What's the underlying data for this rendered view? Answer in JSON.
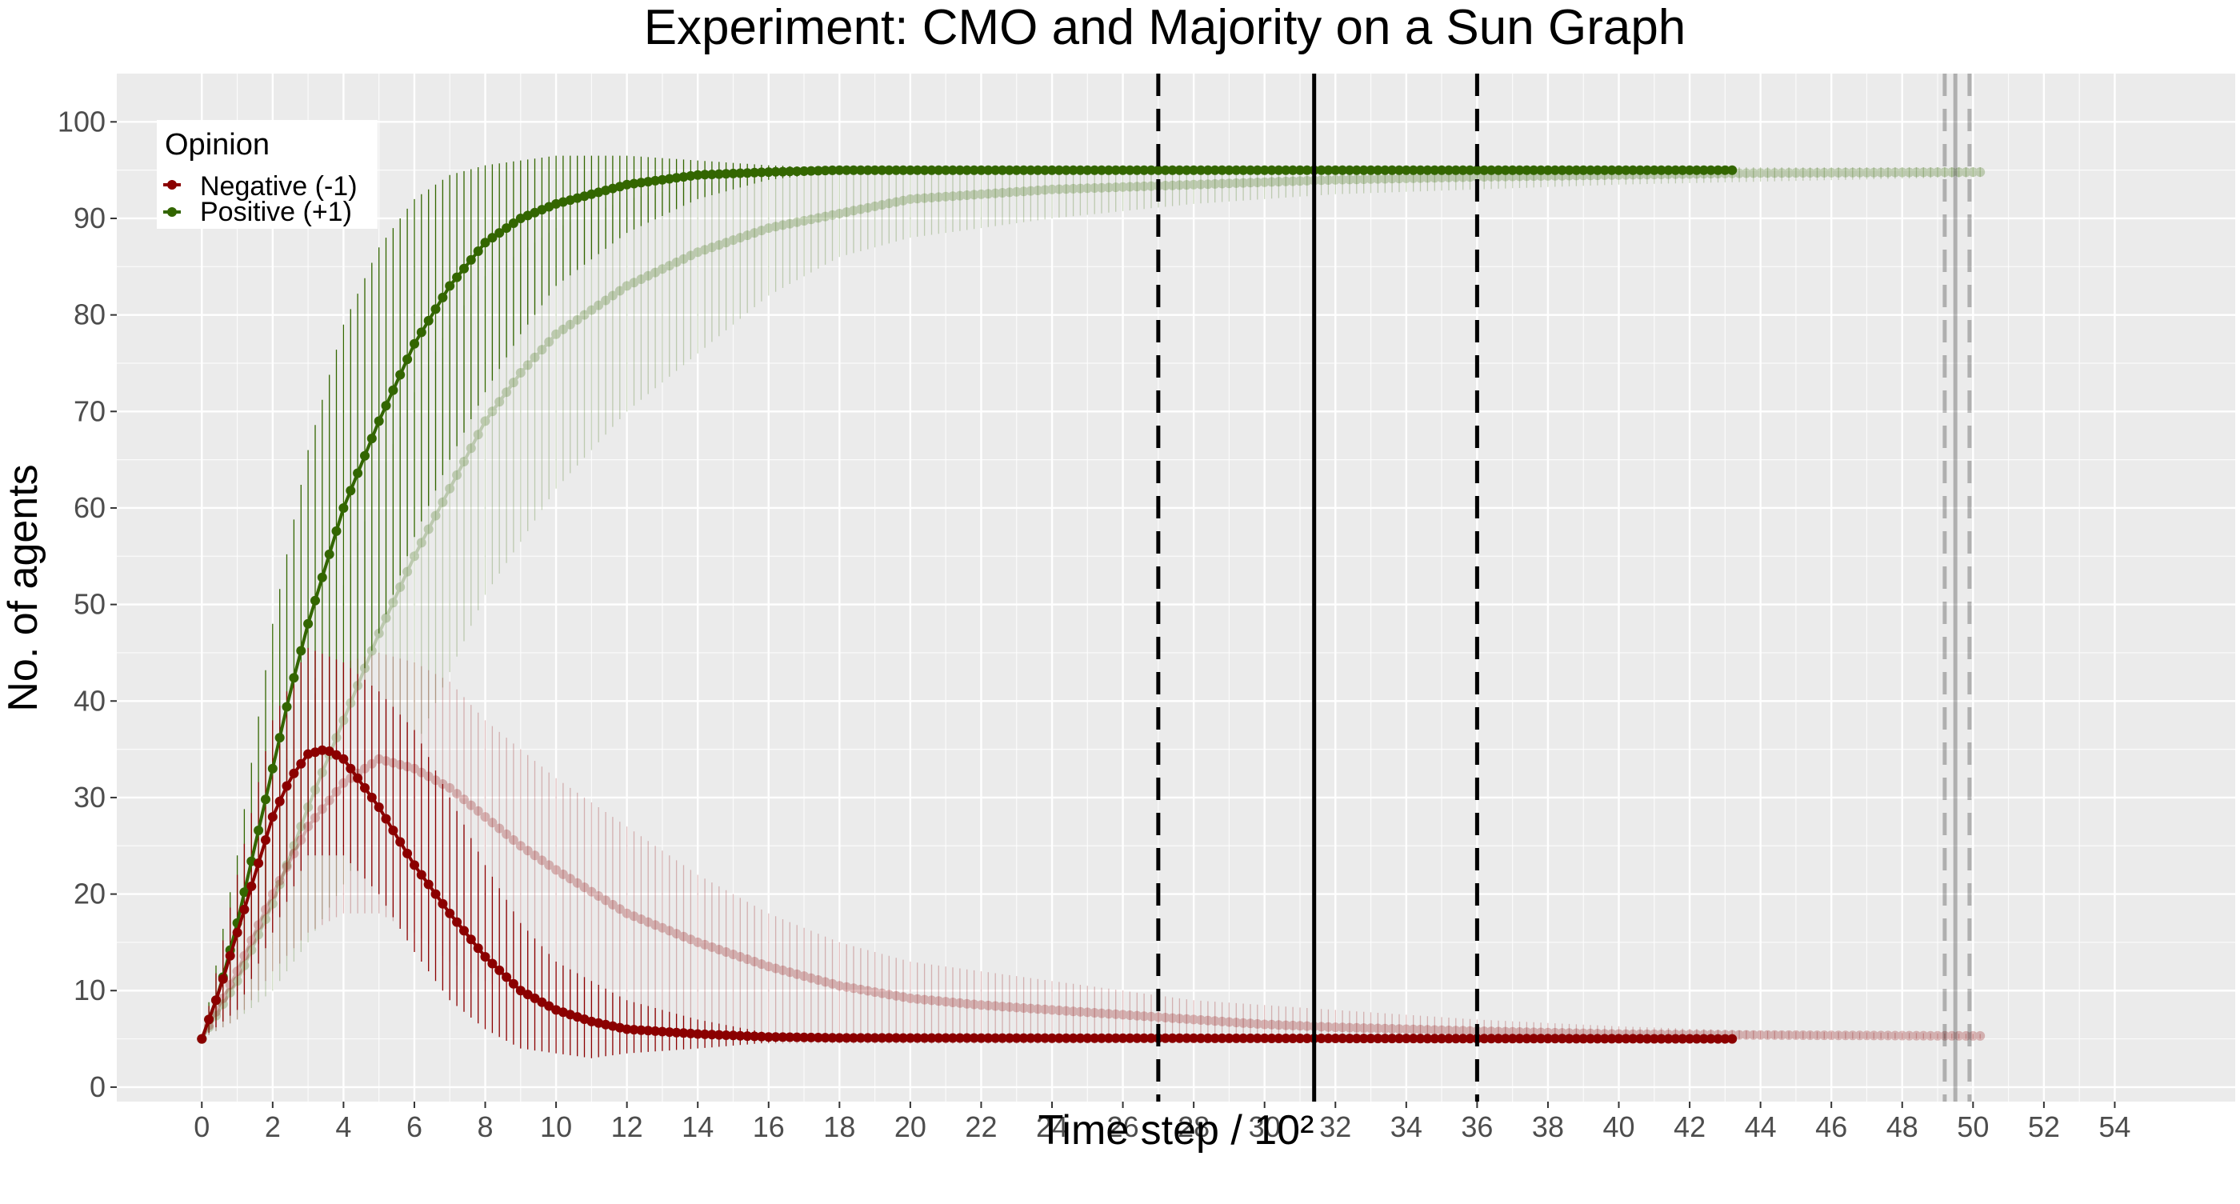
{
  "chart_data": {
    "type": "line",
    "title": "Experiment: CMO and Majority on a Sun Graph",
    "xlabel": "Time step / 10²",
    "ylabel": "No. of agents",
    "xlim": [
      -2.4,
      57.4
    ],
    "ylim": [
      -1.5,
      105
    ],
    "xticks": [
      0,
      2,
      4,
      6,
      8,
      10,
      12,
      14,
      16,
      18,
      20,
      22,
      24,
      26,
      28,
      30,
      32,
      34,
      36,
      38,
      40,
      42,
      44,
      46,
      48,
      50,
      52,
      54
    ],
    "yticks": [
      0,
      10,
      20,
      30,
      40,
      50,
      60,
      70,
      80,
      90,
      100
    ],
    "grid": true,
    "legend": {
      "title": "Opinion",
      "position": "top-left",
      "entries": [
        {
          "label": "Negative (-1)",
          "color": "#8b0000"
        },
        {
          "label": "Positive (+1)",
          "color": "#336600"
        }
      ]
    },
    "colors": {
      "negative": "#8b0000",
      "positive": "#336600",
      "panel": "#ebebeb",
      "grid": "#ffffff"
    },
    "series": [
      {
        "opinion": "Positive (+1)",
        "method": "CMO",
        "color": "#336600",
        "opacity": 1.0,
        "x_end": 43.2,
        "mean": [
          [
            0,
            5
          ],
          [
            0.5,
            10
          ],
          [
            1,
            17
          ],
          [
            1.5,
            25
          ],
          [
            2,
            33
          ],
          [
            2.5,
            41
          ],
          [
            3,
            48
          ],
          [
            3.5,
            54
          ],
          [
            4,
            60
          ],
          [
            5,
            69
          ],
          [
            6,
            77
          ],
          [
            7,
            83
          ],
          [
            8,
            87.5
          ],
          [
            9,
            90
          ],
          [
            10,
            91.5
          ],
          [
            12,
            93.5
          ],
          [
            14,
            94.5
          ],
          [
            16,
            94.8
          ],
          [
            18,
            95
          ],
          [
            43.2,
            95
          ]
        ],
        "band": [
          [
            0,
            5,
            5
          ],
          [
            1,
            10,
            24
          ],
          [
            2,
            18,
            48
          ],
          [
            3,
            28,
            66
          ],
          [
            4,
            38,
            79
          ],
          [
            5,
            47,
            87
          ],
          [
            6,
            57,
            92
          ],
          [
            7,
            65,
            94.5
          ],
          [
            8,
            72,
            95.5
          ],
          [
            9,
            78,
            96
          ],
          [
            10,
            83,
            96.5
          ],
          [
            12,
            88.5,
            96.5
          ],
          [
            14,
            92,
            96
          ],
          [
            16,
            94,
            95.5
          ],
          [
            18,
            94.8,
            95.2
          ],
          [
            43.2,
            95,
            95
          ]
        ]
      },
      {
        "opinion": "Positive (+1)",
        "method": "Majority",
        "color": "#336600",
        "opacity": 0.25,
        "x_end": 50.3,
        "mean": [
          [
            0,
            5
          ],
          [
            1,
            11
          ],
          [
            2,
            19
          ],
          [
            3,
            29
          ],
          [
            4,
            38
          ],
          [
            5,
            47
          ],
          [
            6,
            55
          ],
          [
            7,
            62
          ],
          [
            8,
            69
          ],
          [
            9,
            74
          ],
          [
            10,
            78
          ],
          [
            12,
            83
          ],
          [
            14,
            86.5
          ],
          [
            16,
            89
          ],
          [
            18,
            90.5
          ],
          [
            20,
            92
          ],
          [
            24,
            93
          ],
          [
            28,
            93.5
          ],
          [
            32,
            94
          ],
          [
            36,
            94.3
          ],
          [
            40,
            94.5
          ],
          [
            44,
            94.7
          ],
          [
            50.3,
            94.8
          ]
        ],
        "band": [
          [
            0,
            5,
            5
          ],
          [
            1,
            7,
            16
          ],
          [
            2,
            10,
            28
          ],
          [
            3,
            15,
            40
          ],
          [
            4,
            21,
            52
          ],
          [
            5,
            28,
            63
          ],
          [
            6,
            35,
            72
          ],
          [
            7,
            43,
            79
          ],
          [
            8,
            51,
            84
          ],
          [
            10,
            62,
            89
          ],
          [
            12,
            70,
            92
          ],
          [
            14,
            76,
            93.5
          ],
          [
            16,
            82,
            94.5
          ],
          [
            18,
            86,
            95
          ],
          [
            20,
            88,
            95
          ],
          [
            24,
            90,
            95.2
          ],
          [
            28,
            91.5,
            95.2
          ],
          [
            32,
            92.5,
            95.3
          ],
          [
            40,
            93.5,
            95.3
          ],
          [
            50.3,
            94.3,
            95.3
          ]
        ]
      },
      {
        "opinion": "Negative (-1)",
        "method": "CMO",
        "color": "#8b0000",
        "opacity": 1.0,
        "x_end": 43.2,
        "mean": [
          [
            0,
            5
          ],
          [
            0.5,
            10
          ],
          [
            1,
            16
          ],
          [
            1.5,
            22
          ],
          [
            2,
            28
          ],
          [
            2.5,
            32
          ],
          [
            3,
            34.5
          ],
          [
            3.5,
            35
          ],
          [
            4,
            34
          ],
          [
            5,
            29
          ],
          [
            6,
            23
          ],
          [
            7,
            18
          ],
          [
            8,
            13.5
          ],
          [
            9,
            10
          ],
          [
            10,
            8
          ],
          [
            11,
            6.8
          ],
          [
            12,
            6
          ],
          [
            14,
            5.5
          ],
          [
            16,
            5.2
          ],
          [
            18,
            5.1
          ],
          [
            43.2,
            5
          ]
        ],
        "band": [
          [
            0,
            5,
            5
          ],
          [
            1,
            8,
            22
          ],
          [
            2,
            16,
            38
          ],
          [
            3,
            24,
            45.5
          ],
          [
            4,
            24,
            44
          ],
          [
            5,
            20,
            41
          ],
          [
            6,
            14,
            37
          ],
          [
            7,
            9,
            30
          ],
          [
            8,
            6,
            23
          ],
          [
            9,
            4,
            17
          ],
          [
            10,
            3.5,
            13
          ],
          [
            11,
            3,
            11
          ],
          [
            12,
            3.5,
            9
          ],
          [
            14,
            4,
            7
          ],
          [
            16,
            4.6,
            5.6
          ],
          [
            18,
            5,
            5.2
          ],
          [
            43.2,
            5,
            5
          ]
        ]
      },
      {
        "opinion": "Negative (-1)",
        "method": "Majority",
        "color": "#8b0000",
        "opacity": 0.25,
        "x_end": 50.3,
        "mean": [
          [
            0,
            5
          ],
          [
            1,
            12
          ],
          [
            2,
            20
          ],
          [
            3,
            27
          ],
          [
            4,
            31.5
          ],
          [
            5,
            34
          ],
          [
            6,
            33
          ],
          [
            7,
            31
          ],
          [
            8,
            28
          ],
          [
            9,
            25
          ],
          [
            10,
            22.5
          ],
          [
            12,
            18
          ],
          [
            14,
            15
          ],
          [
            16,
            12.5
          ],
          [
            18,
            10.5
          ],
          [
            20,
            9.2
          ],
          [
            22,
            8.5
          ],
          [
            24,
            8
          ],
          [
            26,
            7.5
          ],
          [
            28,
            7
          ],
          [
            30,
            6.5
          ],
          [
            32,
            6.2
          ],
          [
            34,
            6
          ],
          [
            36,
            5.8
          ],
          [
            40,
            5.5
          ],
          [
            44,
            5.4
          ],
          [
            50.3,
            5.3
          ]
        ],
        "band": [
          [
            0,
            5,
            5
          ],
          [
            1,
            7,
            16
          ],
          [
            2,
            12,
            30
          ],
          [
            3,
            16,
            40
          ],
          [
            4,
            18,
            44
          ],
          [
            5,
            18,
            45
          ],
          [
            6,
            16,
            44
          ],
          [
            7,
            13,
            42
          ],
          [
            8,
            11,
            38
          ],
          [
            10,
            8,
            32
          ],
          [
            12,
            6,
            27
          ],
          [
            14,
            5,
            22
          ],
          [
            16,
            4.5,
            18
          ],
          [
            18,
            4.5,
            15
          ],
          [
            20,
            4.5,
            13
          ],
          [
            24,
            4.5,
            11
          ],
          [
            28,
            4.6,
            9
          ],
          [
            32,
            4.7,
            8
          ],
          [
            36,
            4.8,
            7
          ],
          [
            40,
            4.9,
            6.3
          ],
          [
            44,
            5,
            5.8
          ],
          [
            50.3,
            5,
            5.5
          ]
        ]
      }
    ],
    "vlines": [
      {
        "x": 27.0,
        "style": "dashed",
        "color": "#000000",
        "opacity": 1.0
      },
      {
        "x": 31.4,
        "style": "solid",
        "color": "#000000",
        "opacity": 1.0
      },
      {
        "x": 36.0,
        "style": "dashed",
        "color": "#000000",
        "opacity": 1.0
      },
      {
        "x": 49.2,
        "style": "dashed",
        "color": "#000000",
        "opacity": 0.25
      },
      {
        "x": 49.5,
        "style": "solid",
        "color": "#000000",
        "opacity": 0.25
      },
      {
        "x": 49.9,
        "style": "dashed",
        "color": "#000000",
        "opacity": 0.25
      }
    ]
  }
}
